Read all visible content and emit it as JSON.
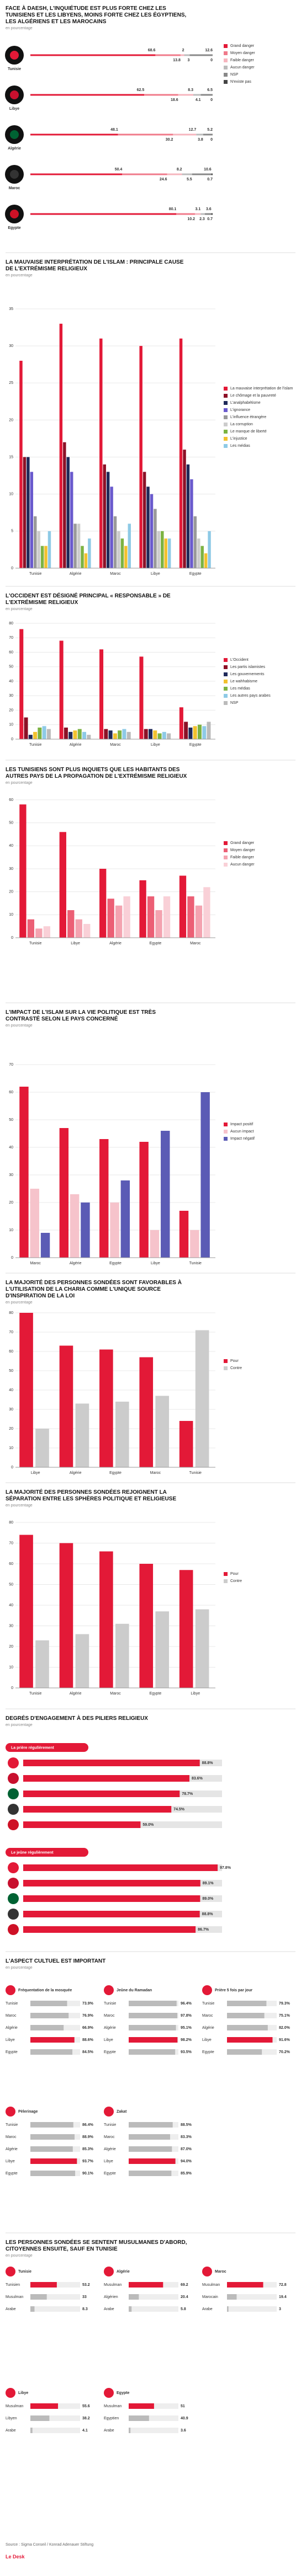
{
  "chart_data": [
    {
      "type": "dotline",
      "title": "FACE À DAESH, L'INQUIÉTUDE EST PLUS FORTE CHEZ LES TUNISIENS ET LES LIBYENS, MOINS FORTE CHEZ LES ÉGYPTIENS, LES ALGÉRIENS ET LES MAROCAINS",
      "subtitle": "en pourcentage",
      "xlim": [
        0,
        100
      ],
      "categories": [
        "Tunisie",
        "Libye",
        "Algérie",
        "Maroc",
        "Egypte"
      ],
      "series": [
        {
          "name": "Grand danger",
          "color": "#e31937",
          "values": [
            68.6,
            62.5,
            48.1,
            50.4,
            80.1
          ]
        },
        {
          "name": "Moyen danger",
          "color": "#f07a8a",
          "values": [
            13.8,
            18.6,
            30.2,
            24.6,
            10.2
          ]
        },
        {
          "name": "Faible danger",
          "color": "#f6b5be",
          "values": [
            2.0,
            8.3,
            12.7,
            8.2,
            3.1
          ]
        },
        {
          "name": "Aucun danger",
          "color": "#bbbbbb",
          "values": [
            3.0,
            4.1,
            3.8,
            5.5,
            2.3
          ]
        },
        {
          "name": "NSP",
          "color": "#888888",
          "values": [
            12.6,
            6.5,
            5.2,
            10.6,
            3.6
          ]
        },
        {
          "name": "N'existe pas",
          "color": "#444444",
          "values": [
            0,
            0,
            0,
            0.7,
            0.7
          ]
        }
      ]
    },
    {
      "type": "bar",
      "title": "LA MAUVAISE INTERPRÉTATION DE L'ISLAM : PRINCIPALE CAUSE DE L'EXTRÉMISME RELIGIEUX",
      "subtitle": "en pourcentage",
      "ylim": [
        0,
        35
      ],
      "yticks": [
        0,
        5,
        10,
        15,
        20,
        25,
        30,
        35
      ],
      "categories": [
        "Tunisie",
        "Algérie",
        "Maroc",
        "Libye",
        "Egypte"
      ],
      "series": [
        {
          "name": "La mauvaise interprétation de l'islam",
          "color": "#e31937",
          "values": [
            28,
            33,
            31,
            30,
            31
          ]
        },
        {
          "name": "Le chômage et la pauvreté",
          "color": "#8c1026",
          "values": [
            15,
            17,
            14,
            13,
            16
          ]
        },
        {
          "name": "L'analphabétisme",
          "color": "#1f2a5a",
          "values": [
            15,
            15,
            13,
            11,
            14
          ]
        },
        {
          "name": "L'ignorance",
          "color": "#6a5acd",
          "values": [
            13,
            13,
            11,
            10,
            12
          ]
        },
        {
          "name": "L'influence étrangère",
          "color": "#999999",
          "values": [
            7,
            6,
            7,
            8,
            7
          ]
        },
        {
          "name": "La corruption",
          "color": "#cccccc",
          "values": [
            5,
            6,
            5,
            5,
            4
          ]
        },
        {
          "name": "Le manque de liberté",
          "color": "#7cb342",
          "values": [
            3,
            3,
            4,
            5,
            3
          ]
        },
        {
          "name": "L'injustice",
          "color": "#f2c12e",
          "values": [
            3,
            2,
            3,
            4,
            2
          ]
        },
        {
          "name": "Les médias",
          "color": "#8ecae6",
          "values": [
            5,
            4,
            6,
            4,
            5
          ]
        }
      ]
    },
    {
      "type": "bar",
      "title": "L'OCCIDENT EST DÉSIGNÉ PRINCIPAL « RESPONSABLE » DE L'EXTRÉMISME RELIGIEUX",
      "subtitle": "en pourcentage",
      "ylim": [
        0,
        80
      ],
      "yticks": [
        0,
        10,
        20,
        30,
        40,
        50,
        60,
        70,
        80
      ],
      "categories": [
        "Tunisie",
        "Algérie",
        "Maroc",
        "Libye",
        "Egypte"
      ],
      "series": [
        {
          "name": "L'Occident",
          "color": "#e31937",
          "values": [
            76,
            68,
            62,
            57,
            22
          ]
        },
        {
          "name": "Les partis islamistes",
          "color": "#8c1026",
          "values": [
            15,
            8,
            7,
            7,
            12
          ]
        },
        {
          "name": "Les gouvernements",
          "color": "#1f2a5a",
          "values": [
            3,
            5,
            6,
            7,
            8
          ]
        },
        {
          "name": "Le wahhabisme",
          "color": "#f2c12e",
          "values": [
            5,
            6,
            4,
            6,
            9
          ]
        },
        {
          "name": "Les médias",
          "color": "#7cb342",
          "values": [
            8,
            7,
            6,
            4,
            10
          ]
        },
        {
          "name": "Les autres pays arabes",
          "color": "#8ecae6",
          "values": [
            9,
            5,
            7,
            5,
            9
          ]
        },
        {
          "name": "NSP",
          "color": "#bbbbbb",
          "values": [
            7,
            3,
            5,
            4,
            12
          ]
        }
      ]
    },
    {
      "type": "bar",
      "title": "LES TUNISIENS SONT PLUS INQUIETS QUE LES HABITANTS DES AUTRES PAYS DE LA PROPAGATION DE L'EXTRÉMISME RELIGIEUX",
      "subtitle": "en pourcentage",
      "ylim": [
        0,
        60
      ],
      "yticks": [
        0,
        10,
        20,
        30,
        40,
        50,
        60
      ],
      "categories": [
        "Tunisie",
        "Libye",
        "Algérie",
        "Egypte",
        "Maroc"
      ],
      "series": [
        {
          "name": "Grand danger",
          "color": "#e31937",
          "values": [
            58,
            46,
            30,
            25,
            27
          ]
        },
        {
          "name": "Moyen danger",
          "color": "#ec5f75",
          "values": [
            8,
            12,
            17,
            18,
            18
          ]
        },
        {
          "name": "Faible danger",
          "color": "#f4a3b0",
          "values": [
            4,
            8,
            14,
            12,
            14
          ]
        },
        {
          "name": "Aucun danger",
          "color": "#f9d0d7",
          "values": [
            5,
            6,
            18,
            18,
            22
          ]
        }
      ]
    },
    {
      "type": "bar",
      "title": "L'IMPACT DE L'ISLAM SUR LA VIE POLITIQUE EST TRÈS CONTRASTÉ SELON LE PAYS CONCERNÉ",
      "subtitle": "en pourcentage",
      "ylim": [
        0,
        70
      ],
      "yticks": [
        0,
        10,
        20,
        30,
        40,
        50,
        60,
        70
      ],
      "categories": [
        "Maroc",
        "Algérie",
        "Egypte",
        "Libye",
        "Tunisie"
      ],
      "series": [
        {
          "name": "Impact positif",
          "color": "#e31937",
          "values": [
            62,
            47,
            43,
            42,
            17
          ]
        },
        {
          "name": "Aucun impact",
          "color": "#f6c3cb",
          "values": [
            25,
            23,
            20,
            10,
            10
          ]
        },
        {
          "name": "Impact négatif",
          "color": "#5b5bb5",
          "values": [
            9,
            20,
            28,
            46,
            60
          ]
        }
      ]
    },
    {
      "type": "bar",
      "title": "LA MAJORITÉ DES PERSONNES SONDÉES SONT FAVORABLES À L'UTILISATION DE LA CHARIA COMME L'UNIQUE SOURCE D'INSPIRATION DE LA LOI",
      "subtitle": "en pourcentage",
      "ylim": [
        0,
        80
      ],
      "yticks": [
        0,
        10,
        20,
        30,
        40,
        50,
        60,
        70,
        80
      ],
      "categories": [
        "Libye",
        "Algérie",
        "Egypte",
        "Maroc",
        "Tunisie"
      ],
      "series": [
        {
          "name": "Pour",
          "color": "#e31937",
          "values": [
            80,
            63,
            61,
            57,
            24
          ]
        },
        {
          "name": "Contre",
          "color": "#cccccc",
          "values": [
            20,
            33,
            34,
            37,
            71
          ]
        }
      ]
    },
    {
      "type": "bar",
      "title": "LA MAJORITÉ DES PERSONNES SONDÉES REJOIGNENT LA SÉPARATION ENTRE LES SPHÈRES POLITIQUE ET RELIGIEUSE",
      "subtitle": "en pourcentage",
      "ylim": [
        0,
        80
      ],
      "yticks": [
        0,
        10,
        20,
        30,
        40,
        50,
        60,
        70,
        80
      ],
      "categories": [
        "Tunisie",
        "Algérie",
        "Maroc",
        "Egypte",
        "Libye"
      ],
      "series": [
        {
          "name": "Pour",
          "color": "#e31937",
          "values": [
            74,
            70,
            66,
            60,
            57
          ]
        },
        {
          "name": "Contre",
          "color": "#cccccc",
          "values": [
            23,
            26,
            31,
            37,
            38
          ]
        }
      ]
    },
    {
      "type": "hbar",
      "title": "DEGRÉS D'ENGAGEMENT À DES PILIERS RELIGIEUX",
      "subtitle": "en pourcentage",
      "xlim": [
        0,
        100
      ],
      "color": "#e31937",
      "groups": [
        {
          "title": "La prière régulièrement",
          "values": [
            88.8,
            83.6,
            78.7,
            74.5,
            59.0
          ],
          "value_labels": [
            "88.8%",
            "83.6%",
            "78.7%",
            "74.5%",
            "59.0%"
          ]
        },
        {
          "title": "Le jeûne régulièrement",
          "values": [
            97.8,
            89.1,
            89.0,
            88.8,
            86.7
          ],
          "value_labels": [
            "97.8%",
            "89.1%",
            "89.0%",
            "88.8%",
            "86.7%"
          ]
        }
      ]
    },
    {
      "type": "panels",
      "title": "L'ASPECT CULTUEL EST IMPORTANT",
      "subtitle": "en pourcentage",
      "xlim": [
        0,
        100
      ],
      "panels": [
        {
          "title": "Fréquentation de la mosquée",
          "categories": [
            "Tunisie",
            "Maroc",
            "Algérie",
            "Libye",
            "Egypte"
          ],
          "values": [
            73.9,
            76.9,
            66.9,
            88.6,
            84.5
          ],
          "value_labels": [
            "73.9%",
            "76.9%",
            "66.9%",
            "88.6%",
            "84.5%"
          ],
          "colors": [
            "#bbbbbb",
            "#bbbbbb",
            "#bbbbbb",
            "#e31937",
            "#bbbbbb"
          ]
        },
        {
          "title": "Jeûne du Ramadan",
          "categories": [
            "Tunisie",
            "Maroc",
            "Algérie",
            "Libye",
            "Egypte"
          ],
          "values": [
            96.4,
            97.8,
            95.1,
            98.2,
            93.5
          ],
          "value_labels": [
            "96.4%",
            "97.8%",
            "95.1%",
            "98.2%",
            "93.5%"
          ],
          "colors": [
            "#bbbbbb",
            "#bbbbbb",
            "#bbbbbb",
            "#e31937",
            "#bbbbbb"
          ]
        },
        {
          "title": "Prière 5 fois par jour",
          "categories": [
            "Tunisie",
            "Maroc",
            "Algérie",
            "Libye",
            "Egypte"
          ],
          "values": [
            79.3,
            75.1,
            82.0,
            91.6,
            70.2
          ],
          "value_labels": [
            "79.3%",
            "75.1%",
            "82.0%",
            "91.6%",
            "70.2%"
          ],
          "colors": [
            "#bbbbbb",
            "#bbbbbb",
            "#bbbbbb",
            "#e31937",
            "#bbbbbb"
          ]
        },
        {
          "title": "Pèlerinage",
          "categories": [
            "Tunisie",
            "Maroc",
            "Algérie",
            "Libye",
            "Egypte"
          ],
          "values": [
            86.4,
            88.9,
            85.3,
            93.7,
            90.1
          ],
          "value_labels": [
            "86.4%",
            "88.9%",
            "85.3%",
            "93.7%",
            "90.1%"
          ],
          "colors": [
            "#bbbbbb",
            "#bbbbbb",
            "#bbbbbb",
            "#e31937",
            "#bbbbbb"
          ]
        },
        {
          "title": "Zakat",
          "categories": [
            "Tunisie",
            "Maroc",
            "Algérie",
            "Libye",
            "Egypte"
          ],
          "values": [
            88.5,
            83.3,
            87.0,
            94.0,
            85.9
          ],
          "value_labels": [
            "88.5%",
            "83.3%",
            "87.0%",
            "94.0%",
            "85.9%"
          ],
          "colors": [
            "#bbbbbb",
            "#bbbbbb",
            "#bbbbbb",
            "#e31937",
            "#bbbbbb"
          ]
        }
      ]
    },
    {
      "type": "panels",
      "title": "LES PERSONNES SONDÉES SE SENTENT MUSULMANES D'ABORD, CITOYENNES ENSUITE, SAUF EN TUNISIE",
      "subtitle": "en pourcentage",
      "xlim": [
        0,
        100
      ],
      "panels": [
        {
          "title": "Tunisie",
          "categories": [
            "Tunisien",
            "Musulman",
            "Arabe"
          ],
          "values": [
            53.2,
            33.0,
            8.3
          ],
          "colors": [
            "#e31937",
            "#bbbbbb",
            "#bbbbbb"
          ]
        },
        {
          "title": "Algérie",
          "categories": [
            "Musulman",
            "Algérien",
            "Arabe"
          ],
          "values": [
            69.2,
            20.4,
            5.8
          ],
          "colors": [
            "#e31937",
            "#bbbbbb",
            "#bbbbbb"
          ]
        },
        {
          "title": "Maroc",
          "categories": [
            "Musulman",
            "Marocain",
            "Arabe"
          ],
          "values": [
            72.8,
            19.4,
            3.0
          ],
          "colors": [
            "#e31937",
            "#bbbbbb",
            "#bbbbbb"
          ]
        },
        {
          "title": "Libye",
          "categories": [
            "Musulman",
            "Libyen",
            "Arabe"
          ],
          "values": [
            55.6,
            38.2,
            4.1
          ],
          "colors": [
            "#e31937",
            "#bbbbbb",
            "#bbbbbb"
          ]
        },
        {
          "title": "Egypte",
          "categories": [
            "Musulman",
            "Egyptien",
            "Arabe"
          ],
          "values": [
            51.0,
            40.9,
            3.6
          ],
          "colors": [
            "#e31937",
            "#bbbbbb",
            "#bbbbbb"
          ]
        }
      ]
    }
  ],
  "footer": {
    "source": "Source : Sigma Conseil / Konrad Adenauer Stiftung",
    "brand": "Le Desk"
  }
}
